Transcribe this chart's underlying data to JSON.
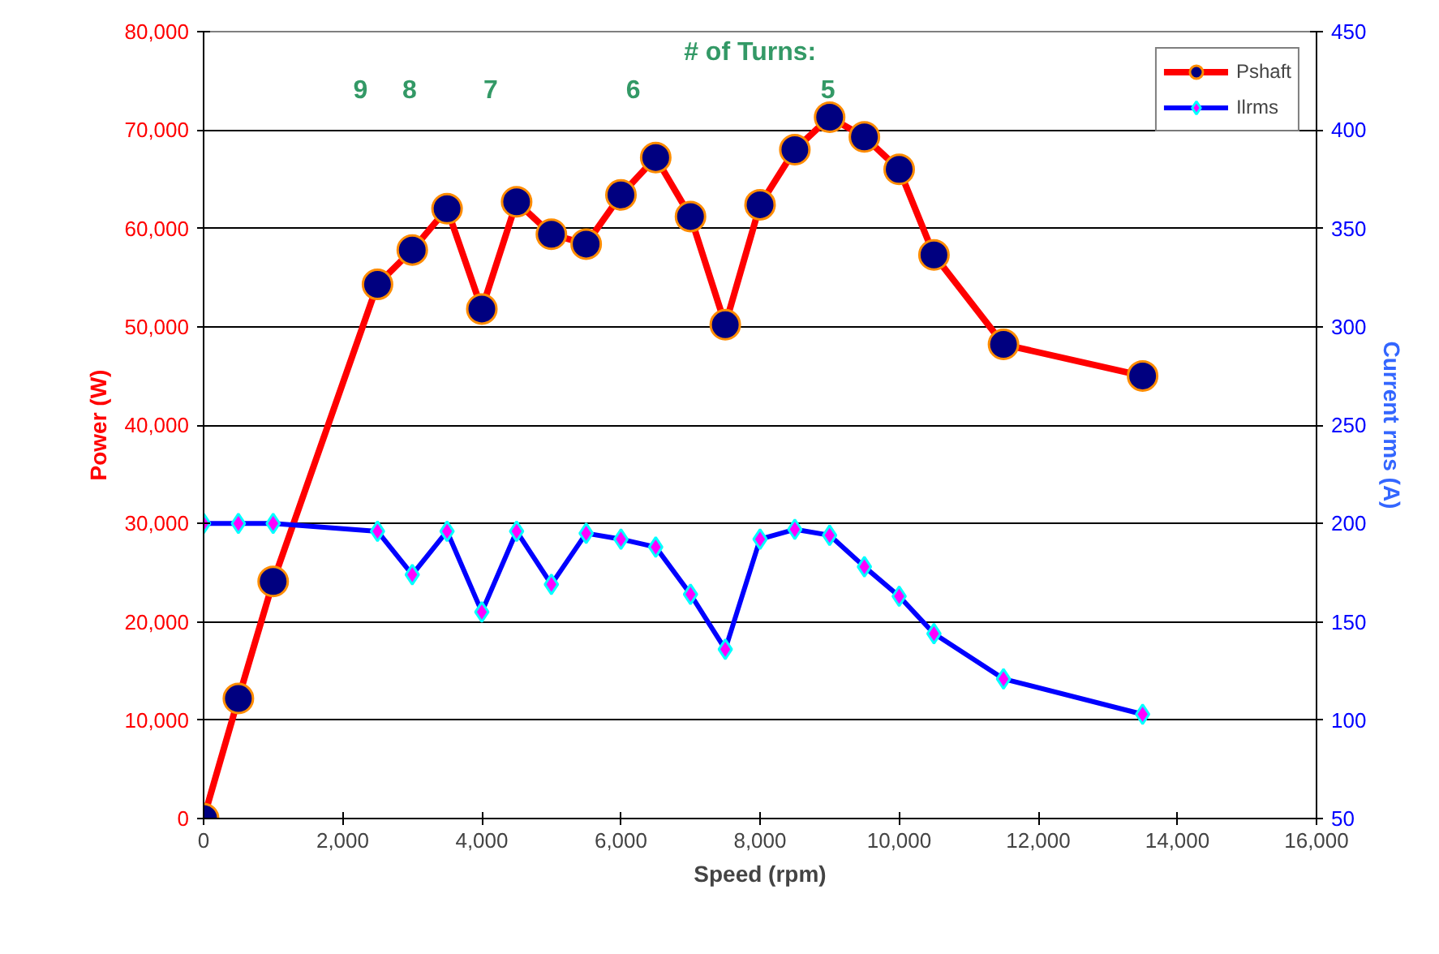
{
  "chart_data": {
    "type": "line",
    "xlabel": "Speed (rpm)",
    "ylabel": "Power (W)",
    "y2label": "Current rms (A)",
    "xlim": [
      0,
      16000
    ],
    "xticks": [
      {
        "value": 0,
        "label": "0"
      },
      {
        "value": 2000,
        "label": "2,000"
      },
      {
        "value": 4000,
        "label": "4,000"
      },
      {
        "value": 6000,
        "label": "6,000"
      },
      {
        "value": 8000,
        "label": "8,000"
      },
      {
        "value": 10000,
        "label": "10,000"
      },
      {
        "value": 12000,
        "label": "12,000"
      },
      {
        "value": 14000,
        "label": "14,000"
      },
      {
        "value": 16000,
        "label": "16,000"
      }
    ],
    "ylim": [
      0,
      80000
    ],
    "yticks": [
      {
        "value": 0,
        "label": "0"
      },
      {
        "value": 10000,
        "label": "10,000"
      },
      {
        "value": 20000,
        "label": "20,000"
      },
      {
        "value": 30000,
        "label": "30,000"
      },
      {
        "value": 40000,
        "label": "40,000"
      },
      {
        "value": 50000,
        "label": "50,000"
      },
      {
        "value": 60000,
        "label": "60,000"
      },
      {
        "value": 70000,
        "label": "70,000"
      },
      {
        "value": 80000,
        "label": "80,000"
      }
    ],
    "y2lim": [
      50,
      450
    ],
    "y2ticks": [
      50,
      100,
      150,
      200,
      250,
      300,
      350,
      400,
      450
    ],
    "grid": "y",
    "legend": "top right",
    "line_style": "solid",
    "x": [
      0,
      500,
      1000,
      2500,
      3000,
      3500,
      4000,
      4500,
      5000,
      5500,
      6000,
      6500,
      7000,
      7500,
      8000,
      8500,
      9000,
      9500,
      10000,
      10500,
      11500,
      13500
    ],
    "series": [
      {
        "name": "Pshaft",
        "color": "#ff0000",
        "marker": "circle",
        "values": [
          0,
          12200,
          24100,
          54300,
          57800,
          62000,
          51800,
          62700,
          59400,
          58400,
          63400,
          67200,
          61200,
          50200,
          62400,
          68000,
          71300,
          69300,
          66000,
          57300,
          48200,
          45000
        ]
      },
      {
        "name": "Ilrms",
        "color": "#0000ff",
        "marker": "diamond",
        "axis": "y2",
        "values": [
          200,
          200,
          200,
          196,
          174,
          196,
          155,
          196,
          169,
          195,
          192,
          188,
          164,
          136,
          192,
          197,
          194,
          178,
          163,
          144,
          121,
          103
        ]
      }
    ],
    "annotations": [
      "# of Turns:",
      "9",
      "8",
      "7",
      "6",
      "5"
    ]
  }
}
